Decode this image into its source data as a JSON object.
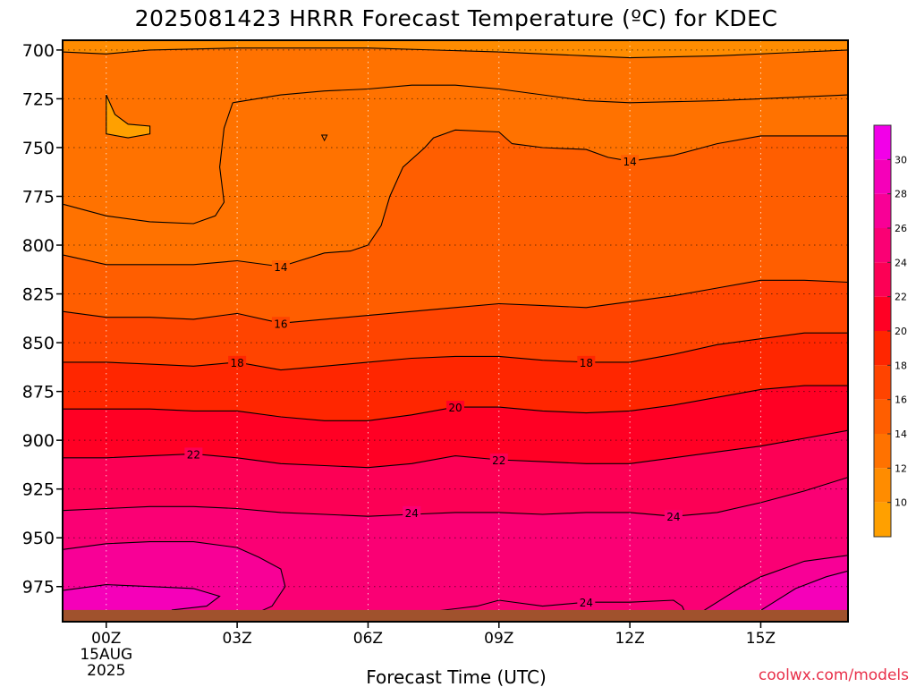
{
  "chart_data": {
    "type": "heatmap",
    "title": "2025081423 HRRR Forecast Temperature (ºC) for KDEC",
    "xlabel": "Forecast Time (UTC)",
    "ylabel": "",
    "credit": "coolwx.com/models",
    "x_ticks": [
      {
        "hour": 0,
        "label": "00Z",
        "sub": [
          "15AUG",
          "2025"
        ]
      },
      {
        "hour": 3,
        "label": "03Z"
      },
      {
        "hour": 6,
        "label": "06Z"
      },
      {
        "hour": 9,
        "label": "09Z"
      },
      {
        "hour": 12,
        "label": "12Z"
      },
      {
        "hour": 15,
        "label": "15Z"
      }
    ],
    "xlim": [
      -1.0,
      17.0
    ],
    "y_ticks": [
      700,
      725,
      750,
      775,
      800,
      825,
      850,
      875,
      900,
      925,
      950,
      975
    ],
    "ylim": [
      695,
      993
    ],
    "y_scale": "pressure (hPa), inverted",
    "grid": "dotted",
    "ground_color": "#a0522d",
    "ground_pressure": 987,
    "colorbar": {
      "position": "right",
      "ticks": [
        10,
        12,
        14,
        16,
        18,
        20,
        22,
        24,
        26,
        28,
        30
      ],
      "range": [
        8,
        32
      ],
      "bins": [
        {
          "from": 8,
          "to": 10,
          "color": "#ffa000"
        },
        {
          "from": 10,
          "to": 12,
          "color": "#ff8c00"
        },
        {
          "from": 12,
          "to": 14,
          "color": "#ff7200"
        },
        {
          "from": 14,
          "to": 16,
          "color": "#ff5e00"
        },
        {
          "from": 16,
          "to": 18,
          "color": "#ff4400"
        },
        {
          "from": 18,
          "to": 20,
          "color": "#ff2600"
        },
        {
          "from": 20,
          "to": 22,
          "color": "#ff0024"
        },
        {
          "from": 22,
          "to": 24,
          "color": "#fc0055"
        },
        {
          "from": 24,
          "to": 26,
          "color": "#fa0074"
        },
        {
          "from": 26,
          "to": 28,
          "color": "#f80096"
        },
        {
          "from": 28,
          "to": 30,
          "color": "#f500b9"
        },
        {
          "from": 30,
          "to": 32,
          "color": "#f200e8"
        }
      ]
    },
    "isotherms": [
      {
        "value": 12,
        "level": 702,
        "points": [
          [
            -1.0,
            701
          ],
          [
            0.0,
            702
          ],
          [
            1.0,
            700
          ],
          [
            3.0,
            699
          ],
          [
            6.0,
            699
          ],
          [
            9.0,
            701
          ],
          [
            11.0,
            703
          ],
          [
            12.0,
            704
          ],
          [
            14.0,
            703
          ],
          [
            16.0,
            701
          ],
          [
            17.0,
            700
          ]
        ]
      },
      {
        "value": 12,
        "level": 732,
        "points": [
          [
            2.9,
            727
          ],
          [
            4.0,
            723
          ],
          [
            5.0,
            721
          ],
          [
            6.0,
            720
          ],
          [
            7.0,
            718
          ],
          [
            8.0,
            718
          ],
          [
            9.0,
            720
          ],
          [
            11.0,
            726
          ],
          [
            12.0,
            727
          ],
          [
            14.0,
            726
          ],
          [
            15.0,
            725
          ],
          [
            17.0,
            723
          ]
        ]
      },
      {
        "value": 12,
        "level": 790,
        "points": [
          [
            -1.0,
            779
          ],
          [
            0.0,
            785
          ],
          [
            1.0,
            788
          ],
          [
            2.0,
            789
          ],
          [
            2.5,
            785
          ],
          [
            2.7,
            778
          ],
          [
            2.6,
            760
          ],
          [
            2.7,
            740
          ],
          [
            2.9,
            727
          ]
        ]
      },
      {
        "value": 14,
        "level": 762,
        "points": [
          [
            6.0,
            800
          ],
          [
            6.3,
            790
          ],
          [
            6.5,
            775
          ],
          [
            6.8,
            760
          ],
          [
            7.3,
            750
          ],
          [
            7.5,
            745
          ],
          [
            8.0,
            741
          ],
          [
            9.0,
            742
          ],
          [
            9.3,
            748
          ],
          [
            10.0,
            750
          ],
          [
            11.0,
            751
          ],
          [
            11.5,
            755
          ],
          [
            12.0,
            757
          ],
          [
            13.0,
            754
          ],
          [
            14.0,
            748
          ],
          [
            15.0,
            744
          ],
          [
            17.0,
            744
          ]
        ]
      },
      {
        "value": 14,
        "level": 808,
        "points": [
          [
            -1.0,
            805
          ],
          [
            0.0,
            810
          ],
          [
            1.0,
            810
          ],
          [
            2.0,
            810
          ],
          [
            3.0,
            808
          ],
          [
            4.0,
            811
          ],
          [
            5.0,
            804
          ],
          [
            5.6,
            803
          ],
          [
            6.0,
            800
          ]
        ]
      },
      {
        "value": 16,
        "level": 830,
        "points": [
          [
            -1.0,
            834
          ],
          [
            0.0,
            837
          ],
          [
            1.0,
            837
          ],
          [
            2.0,
            838
          ],
          [
            3.0,
            835
          ],
          [
            4.0,
            840
          ],
          [
            5.0,
            838
          ],
          [
            6.0,
            836
          ],
          [
            7.0,
            834
          ],
          [
            8.0,
            832
          ],
          [
            9.0,
            830
          ],
          [
            10.0,
            831
          ],
          [
            11.0,
            832
          ],
          [
            12.0,
            829
          ],
          [
            13.0,
            826
          ],
          [
            14.0,
            822
          ],
          [
            15.0,
            818
          ],
          [
            16.0,
            818
          ],
          [
            17.0,
            819
          ]
        ]
      },
      {
        "value": 18,
        "level": 860,
        "points": [
          [
            -1.0,
            860
          ],
          [
            0.0,
            860
          ],
          [
            1.0,
            861
          ],
          [
            2.0,
            862
          ],
          [
            3.0,
            860
          ],
          [
            4.0,
            864
          ],
          [
            5.0,
            862
          ],
          [
            6.0,
            860
          ],
          [
            7.0,
            858
          ],
          [
            8.0,
            857
          ],
          [
            9.0,
            857
          ],
          [
            10.0,
            859
          ],
          [
            11.0,
            860
          ],
          [
            12.0,
            860
          ],
          [
            13.0,
            856
          ],
          [
            14.0,
            851
          ],
          [
            15.0,
            848
          ],
          [
            16.0,
            845
          ],
          [
            17.0,
            845
          ]
        ]
      },
      {
        "value": 20,
        "level": 885,
        "points": [
          [
            -1.0,
            884
          ],
          [
            0.0,
            884
          ],
          [
            1.0,
            884
          ],
          [
            2.0,
            885
          ],
          [
            3.0,
            885
          ],
          [
            4.0,
            888
          ],
          [
            5.0,
            890
          ],
          [
            6.0,
            890
          ],
          [
            7.0,
            887
          ],
          [
            8.0,
            883
          ],
          [
            9.0,
            883
          ],
          [
            10.0,
            885
          ],
          [
            11.0,
            886
          ],
          [
            12.0,
            885
          ],
          [
            13.0,
            882
          ],
          [
            14.0,
            878
          ],
          [
            15.0,
            874
          ],
          [
            16.0,
            872
          ],
          [
            17.0,
            872
          ]
        ]
      },
      {
        "value": 22,
        "level": 910,
        "points": [
          [
            -1.0,
            909
          ],
          [
            0.0,
            909
          ],
          [
            1.0,
            908
          ],
          [
            2.0,
            907
          ],
          [
            3.0,
            909
          ],
          [
            4.0,
            912
          ],
          [
            5.0,
            913
          ],
          [
            6.0,
            914
          ],
          [
            7.0,
            912
          ],
          [
            8.0,
            908
          ],
          [
            9.0,
            910
          ],
          [
            10.0,
            911
          ],
          [
            11.0,
            912
          ],
          [
            12.0,
            912
          ],
          [
            13.0,
            909
          ],
          [
            14.0,
            906
          ],
          [
            15.0,
            903
          ],
          [
            16.0,
            899
          ],
          [
            17.0,
            895
          ]
        ]
      },
      {
        "value": 24,
        "level": 935,
        "points": [
          [
            -1.0,
            936
          ],
          [
            0.0,
            935
          ],
          [
            1.0,
            934
          ],
          [
            2.0,
            934
          ],
          [
            3.0,
            935
          ],
          [
            4.0,
            937
          ],
          [
            5.0,
            938
          ],
          [
            6.0,
            939
          ],
          [
            7.0,
            938
          ],
          [
            8.0,
            937
          ],
          [
            9.0,
            937
          ],
          [
            10.0,
            938
          ],
          [
            11.0,
            937
          ],
          [
            12.0,
            937
          ],
          [
            13.0,
            939
          ],
          [
            14.0,
            937
          ],
          [
            15.0,
            932
          ],
          [
            16.0,
            926
          ],
          [
            17.0,
            919
          ]
        ]
      },
      {
        "value": 26,
        "level": 960,
        "points": [
          [
            -1.0,
            956
          ],
          [
            0.0,
            953
          ],
          [
            1.0,
            952
          ],
          [
            2.0,
            952
          ],
          [
            3.0,
            955
          ],
          [
            3.5,
            960
          ],
          [
            4.0,
            966
          ],
          [
            4.1,
            975
          ],
          [
            3.8,
            985
          ],
          [
            3.3,
            990
          ]
        ]
      },
      {
        "value": 26,
        "level": 960,
        "points": [
          [
            13.5,
            990
          ],
          [
            14.0,
            983
          ],
          [
            14.5,
            976
          ],
          [
            15.0,
            970
          ],
          [
            16.0,
            962
          ],
          [
            17.0,
            959
          ]
        ]
      },
      {
        "value": 24,
        "level": 985,
        "points": [
          [
            6.0,
            990
          ],
          [
            7.0,
            989
          ],
          [
            8.5,
            985
          ],
          [
            9.0,
            982
          ],
          [
            10.0,
            985
          ],
          [
            11.0,
            983
          ],
          [
            12.0,
            983
          ],
          [
            13.0,
            982
          ],
          [
            13.2,
            985
          ],
          [
            13.3,
            990
          ]
        ]
      },
      {
        "value": 28,
        "level": 980,
        "points": [
          [
            -1.0,
            977
          ],
          [
            0.0,
            974
          ],
          [
            1.0,
            975
          ],
          [
            2.0,
            976
          ],
          [
            2.6,
            980
          ],
          [
            2.3,
            985
          ],
          [
            1.5,
            987
          ]
        ]
      },
      {
        "value": 28,
        "level": 975,
        "points": [
          [
            14.8,
            990
          ],
          [
            15.3,
            983
          ],
          [
            15.8,
            976
          ],
          [
            16.5,
            970
          ],
          [
            17.0,
            967
          ]
        ]
      },
      {
        "value": 30,
        "level": 985,
        "points": [
          [
            16.8,
            990
          ],
          [
            17.0,
            987
          ]
        ]
      }
    ],
    "isotherm_pocket": {
      "value": 10,
      "points": [
        [
          0.0,
          723
        ],
        [
          0.2,
          733
        ],
        [
          0.5,
          738
        ],
        [
          1.0,
          739
        ],
        [
          1.0,
          743
        ],
        [
          0.5,
          745
        ],
        [
          0.0,
          743
        ]
      ]
    },
    "isotherm_dot": {
      "value": 14,
      "at": [
        5.0,
        745
      ]
    },
    "contour_labels": [
      {
        "text": "14",
        "x": 4.0,
        "p": 811
      },
      {
        "text": "14",
        "x": 12.0,
        "p": 757
      },
      {
        "text": "16",
        "x": 4.0,
        "p": 840
      },
      {
        "text": "18",
        "x": 3.0,
        "p": 860
      },
      {
        "text": "18",
        "x": 11.0,
        "p": 860
      },
      {
        "text": "20",
        "x": 8.0,
        "p": 883
      },
      {
        "text": "22",
        "x": 2.0,
        "p": 907
      },
      {
        "text": "22",
        "x": 9.0,
        "p": 910
      },
      {
        "text": "24",
        "x": 7.0,
        "p": 937
      },
      {
        "text": "24",
        "x": 13.0,
        "p": 939
      },
      {
        "text": "24",
        "x": 11.0,
        "p": 983
      }
    ],
    "field_stops": [
      {
        "p": 695,
        "t": 10.5
      },
      {
        "p": 725,
        "t": 11.5
      },
      {
        "p": 760,
        "t": 13.0
      },
      {
        "p": 800,
        "t": 14.6
      },
      {
        "p": 830,
        "t": 16.2
      },
      {
        "p": 860,
        "t": 18.5
      },
      {
        "p": 885,
        "t": 20.5
      },
      {
        "p": 910,
        "t": 22.6
      },
      {
        "p": 935,
        "t": 24.5
      },
      {
        "p": 960,
        "t": 26.3
      },
      {
        "p": 990,
        "t": 27.2
      }
    ]
  }
}
